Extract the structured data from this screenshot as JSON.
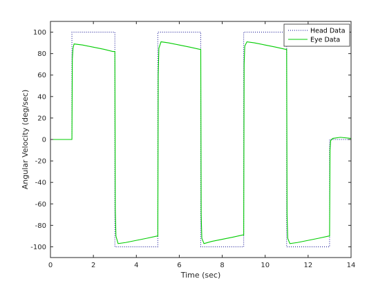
{
  "chart_data": {
    "type": "line",
    "title": "",
    "xlabel": "Time (sec)",
    "ylabel": "Angular  Velocity  (deg/sec)",
    "xlim": [
      0,
      14
    ],
    "ylim": [
      -110,
      110
    ],
    "xticks": [
      0,
      2,
      4,
      6,
      8,
      10,
      12,
      14
    ],
    "yticks": [
      -100,
      -80,
      -60,
      -40,
      -20,
      0,
      20,
      40,
      60,
      80,
      100
    ],
    "grid": false,
    "legend_location": "top-right",
    "series": [
      {
        "name": "Head Data",
        "style": "dotted",
        "color": "#00008b",
        "x": [
          0,
          1,
          1,
          3,
          3,
          5,
          5,
          7,
          7,
          9,
          9,
          11,
          11,
          13,
          13,
          14
        ],
        "y": [
          0,
          0,
          100,
          100,
          -100,
          -100,
          100,
          100,
          -100,
          -100,
          100,
          100,
          -100,
          -100,
          0,
          0
        ]
      },
      {
        "name": "Eye Data",
        "style": "solid",
        "color": "#00cc00",
        "x": [
          0,
          1,
          1.02,
          1.05,
          1.1,
          1.5,
          2.0,
          2.5,
          2.9,
          3.0,
          3.02,
          3.05,
          3.15,
          3.5,
          4.0,
          4.5,
          4.95,
          5.0,
          5.02,
          5.05,
          5.15,
          5.5,
          6.0,
          6.5,
          6.95,
          7.0,
          7.02,
          7.05,
          7.15,
          7.5,
          8.0,
          8.5,
          8.95,
          9.0,
          9.02,
          9.05,
          9.15,
          9.5,
          10.0,
          10.5,
          10.95,
          11.0,
          11.02,
          11.05,
          11.15,
          11.5,
          12.0,
          12.5,
          12.95,
          13.0,
          13.02,
          13.05,
          13.15,
          13.5,
          14.0
        ],
        "y": [
          0,
          0,
          75,
          85,
          89,
          88,
          86,
          84,
          82,
          82,
          -65,
          -90,
          -97,
          -96,
          -94,
          -92,
          -90,
          -90,
          60,
          85,
          91,
          90,
          88,
          86,
          84,
          84,
          -70,
          -92,
          -97,
          -95,
          -93,
          -91,
          -89,
          -89,
          70,
          87,
          91,
          90,
          88,
          86,
          84,
          84,
          -70,
          -92,
          -97,
          -96,
          -94,
          -92,
          -90,
          -90,
          -10,
          -1,
          1,
          2,
          1
        ]
      }
    ]
  }
}
